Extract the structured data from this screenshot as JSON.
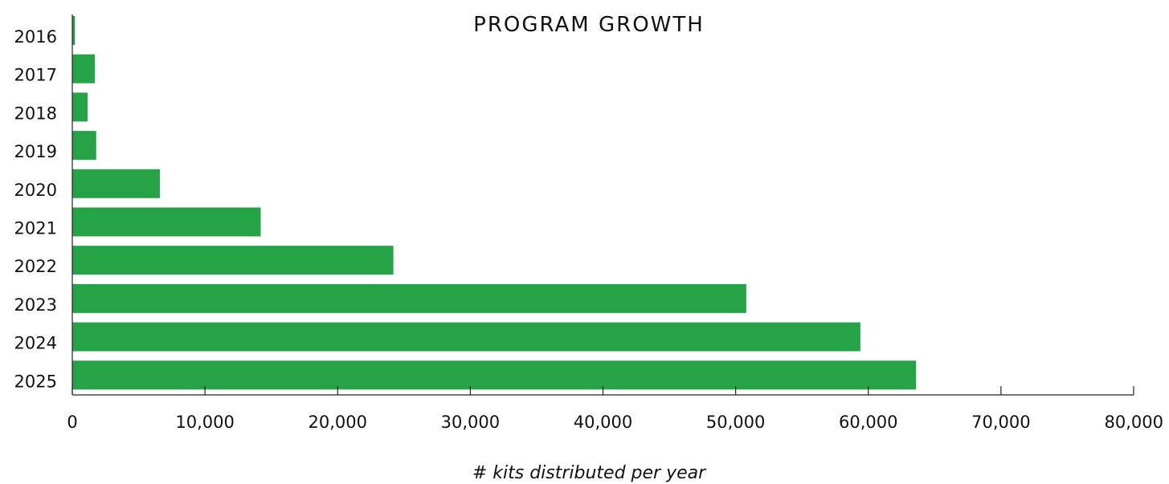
{
  "chart_data": {
    "type": "bar",
    "orientation": "horizontal",
    "title": "PROGRAM GROWTH",
    "xlabel": "# kits distributed per year",
    "ylabel": "",
    "categories": [
      "2016",
      "2017",
      "2018",
      "2019",
      "2020",
      "2021",
      "2022",
      "2023",
      "2024",
      "2025"
    ],
    "values": [
      200,
      1700,
      1150,
      1800,
      6600,
      14200,
      24200,
      50800,
      59400,
      63600
    ],
    "xlim": [
      0,
      80000
    ],
    "x_ticks": [
      0,
      10000,
      20000,
      30000,
      40000,
      50000,
      60000,
      70000,
      80000
    ],
    "x_tick_labels": [
      "0",
      "10,000",
      "20,000",
      "30,000",
      "40,000",
      "50,000",
      "60,000",
      "70,000",
      "80,000"
    ],
    "grid": false,
    "legend": "none",
    "bar_color": "#27a347"
  }
}
